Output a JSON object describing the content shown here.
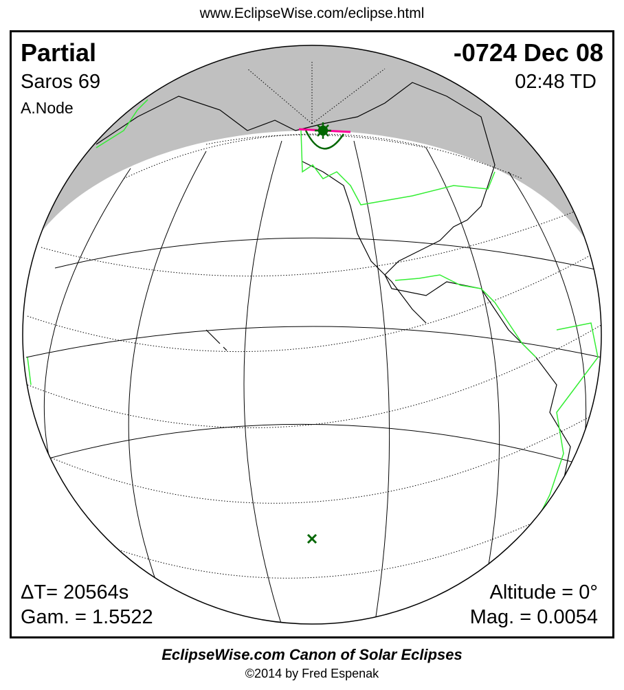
{
  "url": "www.EclipseWise.com/eclipse.html",
  "eclipse_type": "Partial",
  "date": "-0724 Dec 08",
  "saros": "Saros  69",
  "time": "02:48 TD",
  "node": "A.Node",
  "delta_t": "ΔT=  20564s",
  "gamma": "Gam. = 1.5522",
  "altitude": "Altitude =  0°",
  "magnitude": "Mag. = 0.0054",
  "footer_title": "EclipseWise.com Canon of Solar Eclipses",
  "footer_copyright": "©2014 by Fred Espenak",
  "colors": {
    "night": "#c0c0c0",
    "borders": "#33ee33",
    "eclipse_path": "#ff0099",
    "sun_marker": "#006600"
  },
  "icons": {
    "greatest_eclipse": "sun-star-icon",
    "sub_point": "x-mark-icon"
  }
}
